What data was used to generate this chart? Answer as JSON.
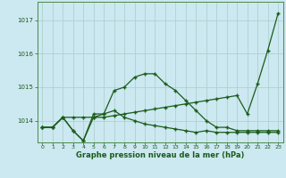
{
  "title": "",
  "xlabel": "Graphe pression niveau de la mer (hPa)",
  "bg_color": "#cce8f0",
  "grid_color": "#aacccc",
  "line_color": "#1a5c1a",
  "x": [
    0,
    1,
    2,
    3,
    4,
    5,
    6,
    7,
    8,
    9,
    10,
    11,
    12,
    13,
    14,
    15,
    16,
    17,
    18,
    19,
    20,
    21,
    22,
    23
  ],
  "line1": [
    1013.8,
    1013.8,
    1014.1,
    1014.1,
    1014.1,
    1014.1,
    1014.1,
    1014.15,
    1014.2,
    1014.25,
    1014.3,
    1014.35,
    1014.4,
    1014.45,
    1014.5,
    1014.55,
    1014.6,
    1014.65,
    1014.7,
    1014.75,
    1014.2,
    1015.1,
    1016.1,
    1017.2
  ],
  "line2": [
    1013.8,
    1013.8,
    1014.1,
    1013.7,
    1013.4,
    1014.2,
    1014.2,
    1014.9,
    1015.0,
    1015.3,
    1015.4,
    1015.4,
    1015.1,
    1014.9,
    1014.6,
    1014.3,
    1014.0,
    1013.8,
    1013.8,
    1013.7,
    1013.7,
    1013.7,
    1013.7,
    1013.7
  ],
  "line3": [
    1013.8,
    1013.8,
    1014.1,
    1013.7,
    1013.4,
    1014.1,
    1014.2,
    1014.3,
    1014.1,
    1014.0,
    1013.9,
    1013.85,
    1013.8,
    1013.75,
    1013.7,
    1013.65,
    1013.7,
    1013.65,
    1013.65,
    1013.65,
    1013.65,
    1013.65,
    1013.65,
    1013.65
  ],
  "ylim_min": 1013.35,
  "ylim_max": 1017.55,
  "yticks": [
    1014,
    1015,
    1016,
    1017
  ],
  "xticks": [
    0,
    1,
    2,
    3,
    4,
    5,
    6,
    7,
    8,
    9,
    10,
    11,
    12,
    13,
    14,
    15,
    16,
    17,
    18,
    19,
    20,
    21,
    22,
    23
  ]
}
